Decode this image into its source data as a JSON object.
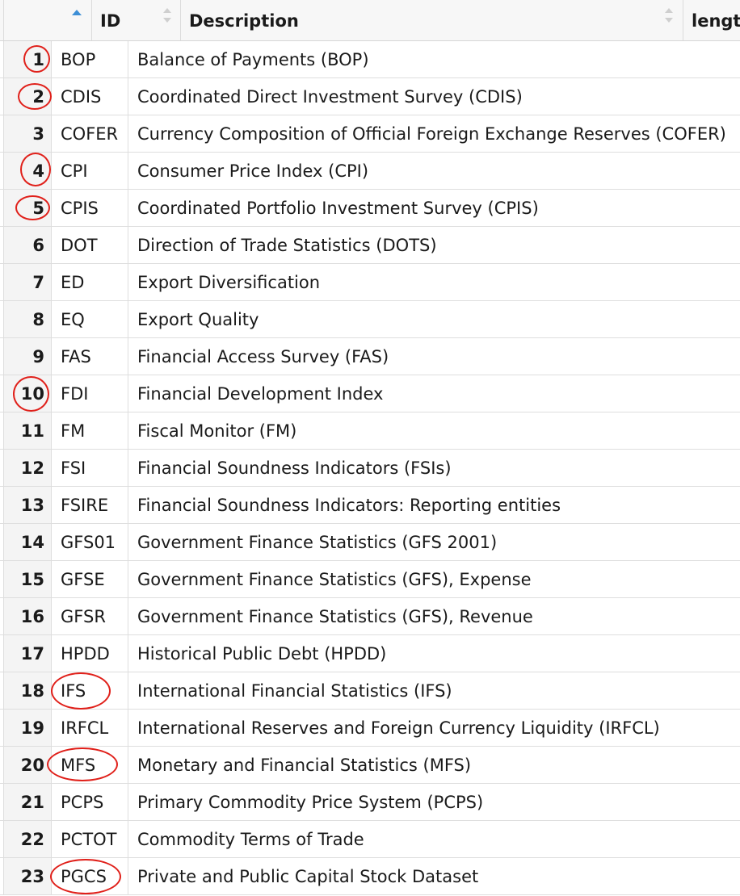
{
  "table": {
    "columns": {
      "id": "ID",
      "description": "Description",
      "length": "length"
    },
    "rows": [
      {
        "n": "1",
        "id": "BOP",
        "desc": "Balance of Payments (BOP)"
      },
      {
        "n": "2",
        "id": "CDIS",
        "desc": "Coordinated Direct Investment Survey (CDIS)"
      },
      {
        "n": "3",
        "id": "COFER",
        "desc": "Currency Composition of Official Foreign Exchange Reserves (COFER)"
      },
      {
        "n": "4",
        "id": "CPI",
        "desc": "Consumer Price Index (CPI)"
      },
      {
        "n": "5",
        "id": "CPIS",
        "desc": "Coordinated Portfolio Investment Survey (CPIS)"
      },
      {
        "n": "6",
        "id": "DOT",
        "desc": "Direction of Trade Statistics (DOTS)"
      },
      {
        "n": "7",
        "id": "ED",
        "desc": "Export Diversification"
      },
      {
        "n": "8",
        "id": "EQ",
        "desc": "Export Quality"
      },
      {
        "n": "9",
        "id": "FAS",
        "desc": "Financial Access Survey (FAS)"
      },
      {
        "n": "10",
        "id": "FDI",
        "desc": "Financial Development Index"
      },
      {
        "n": "11",
        "id": "FM",
        "desc": "Fiscal Monitor (FM)"
      },
      {
        "n": "12",
        "id": "FSI",
        "desc": "Financial Soundness Indicators (FSIs)"
      },
      {
        "n": "13",
        "id": "FSIRE",
        "desc": "Financial Soundness Indicators: Reporting entities"
      },
      {
        "n": "14",
        "id": "GFS01",
        "desc": "Government Finance Statistics (GFS 2001)"
      },
      {
        "n": "15",
        "id": "GFSE",
        "desc": "Government Finance Statistics (GFS), Expense"
      },
      {
        "n": "16",
        "id": "GFSR",
        "desc": "Government Finance Statistics (GFS), Revenue"
      },
      {
        "n": "17",
        "id": "HPDD",
        "desc": "Historical Public Debt (HPDD)"
      },
      {
        "n": "18",
        "id": "IFS",
        "desc": "International Financial Statistics (IFS)"
      },
      {
        "n": "19",
        "id": "IRFCL",
        "desc": "International Reserves and Foreign Currency Liquidity (IRFCL)"
      },
      {
        "n": "20",
        "id": "MFS",
        "desc": "Monetary and Financial Statistics (MFS)"
      },
      {
        "n": "21",
        "id": "PCPS",
        "desc": "Primary Commodity Price System (PCPS)"
      },
      {
        "n": "22",
        "id": "PCTOT",
        "desc": "Commodity Terms of Trade"
      },
      {
        "n": "23",
        "id": "PGCS",
        "desc": "Private and Public Capital Stock Dataset"
      }
    ]
  },
  "colors": {
    "annotation": "#e0201a",
    "sort_active": "#3d8fd6"
  }
}
